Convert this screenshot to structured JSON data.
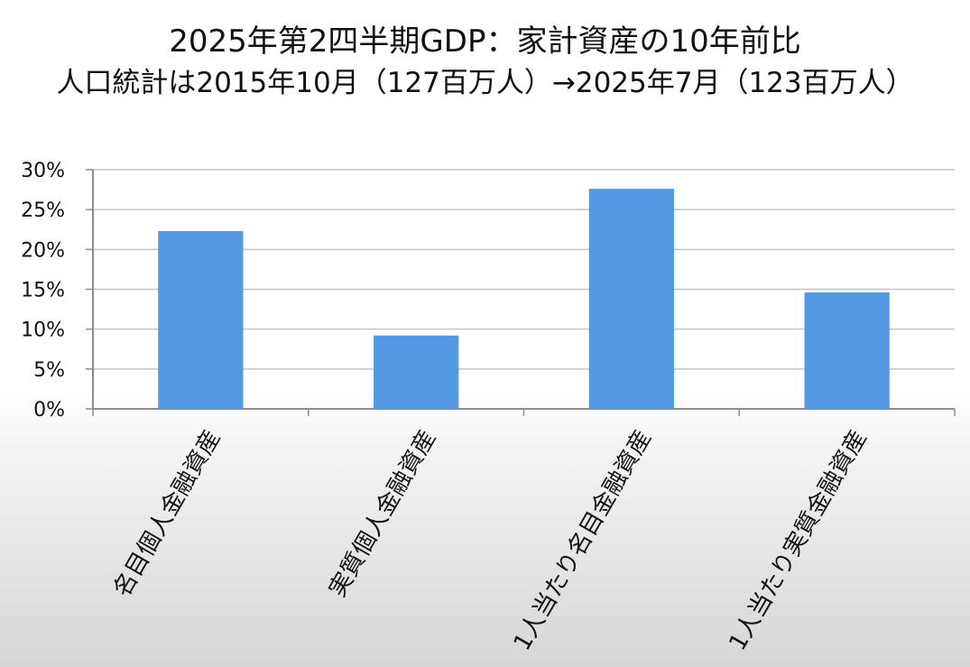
{
  "chart_data": {
    "type": "bar",
    "title": "2025年第2四半期GDP：家計資産の10年前比",
    "subtitle": "人口統計は2015年10月（127百万人）→2025年7月（123百万人）",
    "categories": [
      "名目個人金融資産",
      "実質個人金融資産",
      "1人当たり名目金融資産",
      "1人当たり実質金融資産"
    ],
    "series": [
      {
        "values": [
          22.3,
          9.2,
          27.6,
          14.6
        ]
      }
    ],
    "y_unit": "%",
    "ylim": [
      0,
      30
    ],
    "yticks": [
      0,
      5,
      10,
      15,
      20,
      25,
      30
    ],
    "ytick_labels": [
      "0%",
      "5%",
      "10%",
      "15%",
      "20%",
      "25%",
      "30%"
    ],
    "grid": true,
    "legend": "none",
    "bar_color": "#5599e3"
  }
}
